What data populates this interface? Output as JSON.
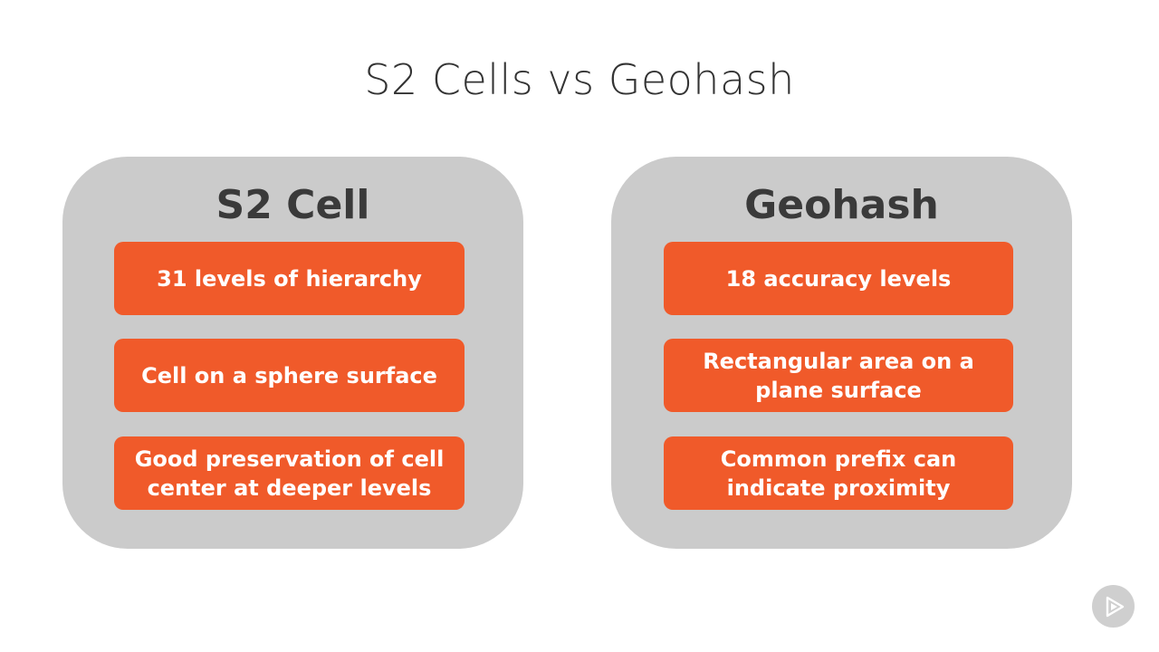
{
  "slide": {
    "title": "S2 Cells vs Geohash"
  },
  "panels": [
    {
      "heading": "S2 Cell",
      "items": [
        "31 levels of hierarchy",
        "Cell on a sphere surface",
        "Good preservation of cell center at deeper levels"
      ]
    },
    {
      "heading": "Geohash",
      "items": [
        "18 accuracy levels",
        "Rectangular area on a plane surface",
        "Common prefix can indicate proximity"
      ]
    }
  ],
  "colors": {
    "panel_bg": "#cbcbcb",
    "card_bg": "#f05a2a",
    "card_text": "#ffffff",
    "heading_text": "#3a3a3a",
    "title_text": "#333333"
  },
  "icons": {
    "corner_logo": "play-logo-icon"
  }
}
